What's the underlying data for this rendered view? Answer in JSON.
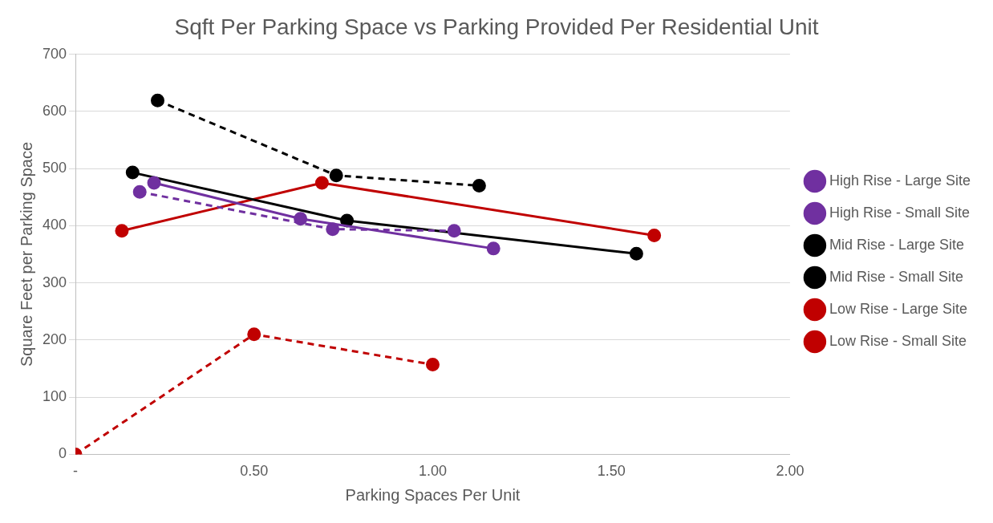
{
  "chart_data": {
    "type": "line",
    "title": "Sqft Per Parking Space vs Parking Provided Per Residential Unit",
    "xlabel": "Parking Spaces Per Unit",
    "ylabel": "Square Feet per Parking Space",
    "xlim": [
      0,
      2
    ],
    "xticks": [
      {
        "value": 0,
        "label": "-"
      },
      {
        "value": 0.5,
        "label": "0.50"
      },
      {
        "value": 1,
        "label": "1.00"
      },
      {
        "value": 1.5,
        "label": "1.50"
      },
      {
        "value": 2,
        "label": "2.00"
      }
    ],
    "ylim": [
      0,
      700
    ],
    "yticks": [
      0,
      100,
      200,
      300,
      400,
      500,
      600,
      700
    ],
    "grid": "y",
    "legend": "right",
    "marker": "circle",
    "series": [
      {
        "name": "High Rise - Large Site",
        "color": "#7030a0",
        "line_style": "solid",
        "x": [
          0.22,
          0.63,
          1.17
        ],
        "values": [
          475,
          412,
          360
        ]
      },
      {
        "name": "High Rise - Small Site",
        "color": "#7030a0",
        "line_style": "dashed",
        "x": [
          0.18,
          0.72,
          1.06
        ],
        "values": [
          459,
          394,
          391
        ]
      },
      {
        "name": "Mid Rise - Large Site",
        "color": "#000000",
        "line_style": "solid",
        "x": [
          0.16,
          0.76,
          1.57
        ],
        "values": [
          493,
          409,
          351
        ]
      },
      {
        "name": "Mid Rise - Small Site",
        "color": "#000000",
        "line_style": "dashed",
        "x": [
          0.23,
          0.73,
          1.13
        ],
        "values": [
          619,
          488,
          470
        ]
      },
      {
        "name": "Low Rise - Large Site",
        "color": "#c00000",
        "line_style": "solid",
        "x": [
          0.13,
          0.69,
          1.62
        ],
        "values": [
          391,
          475,
          383
        ]
      },
      {
        "name": "Low Rise - Small Site",
        "color": "#c00000",
        "line_style": "dashed",
        "x": [
          0,
          0.5,
          1
        ],
        "values": [
          0,
          210,
          157
        ]
      }
    ]
  }
}
